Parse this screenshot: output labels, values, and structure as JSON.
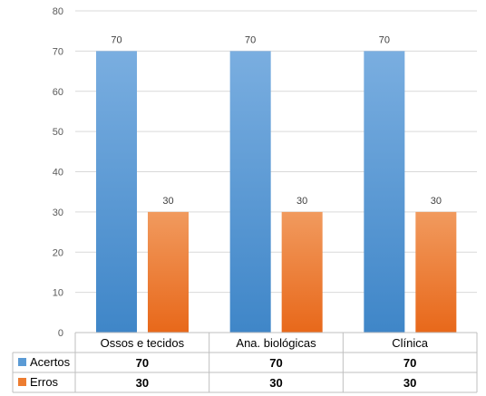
{
  "chart_data": {
    "type": "bar",
    "categories": [
      "Ossos e tecidos",
      "Ana. biológicas",
      "Clínica"
    ],
    "series": [
      {
        "name": "Acertos",
        "values": [
          70,
          70,
          70
        ],
        "color": "#5b9bd5",
        "color_dark": "#3f86c8",
        "color_light": "#7aaee0"
      },
      {
        "name": "Erros",
        "values": [
          30,
          30,
          30
        ],
        "color": "#ed7d31",
        "color_dark": "#e8681a",
        "color_light": "#f19a5e"
      }
    ],
    "ylim": [
      0,
      80
    ],
    "yticks": [
      0,
      10,
      20,
      30,
      40,
      50,
      60,
      70,
      80
    ],
    "grid": true,
    "legend": "data-table"
  }
}
